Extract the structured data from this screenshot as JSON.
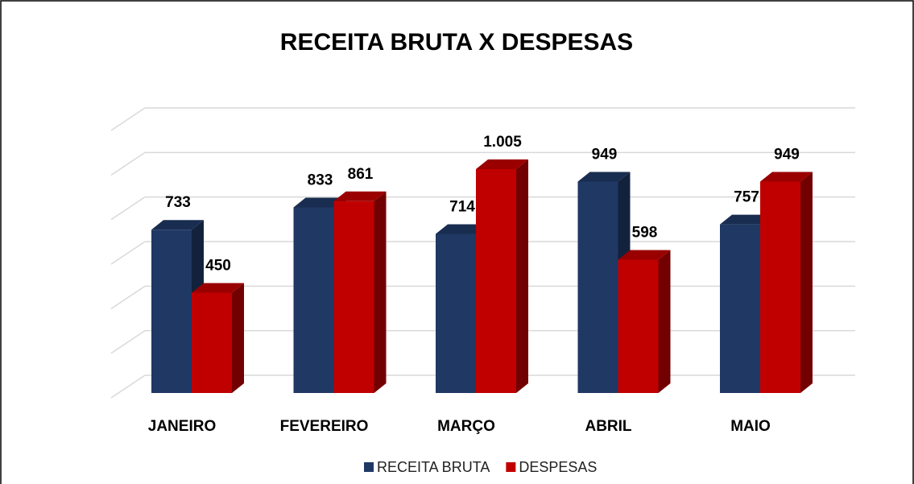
{
  "chart_data": {
    "type": "bar3d",
    "title": "RECEITA BRUTA X DESPESAS",
    "categories": [
      "JANEIRO",
      "FEVEREIRO",
      "MARÇO",
      "ABRIL",
      "MAIO"
    ],
    "series": [
      {
        "name": "RECEITA BRUTA",
        "color": "#1f3864",
        "values": [
          733,
          833,
          714,
          949,
          757
        ]
      },
      {
        "name": "DESPESAS",
        "color": "#c00000",
        "values": [
          450,
          861,
          1005,
          598,
          949
        ],
        "value_labels": [
          "450",
          "861",
          "1.005",
          "598",
          "949"
        ]
      }
    ],
    "ylim": [
      0,
      1200
    ],
    "yticks": [
      0,
      200,
      400,
      600,
      800,
      1000,
      1200
    ],
    "grid": true,
    "legend": "bottom"
  }
}
